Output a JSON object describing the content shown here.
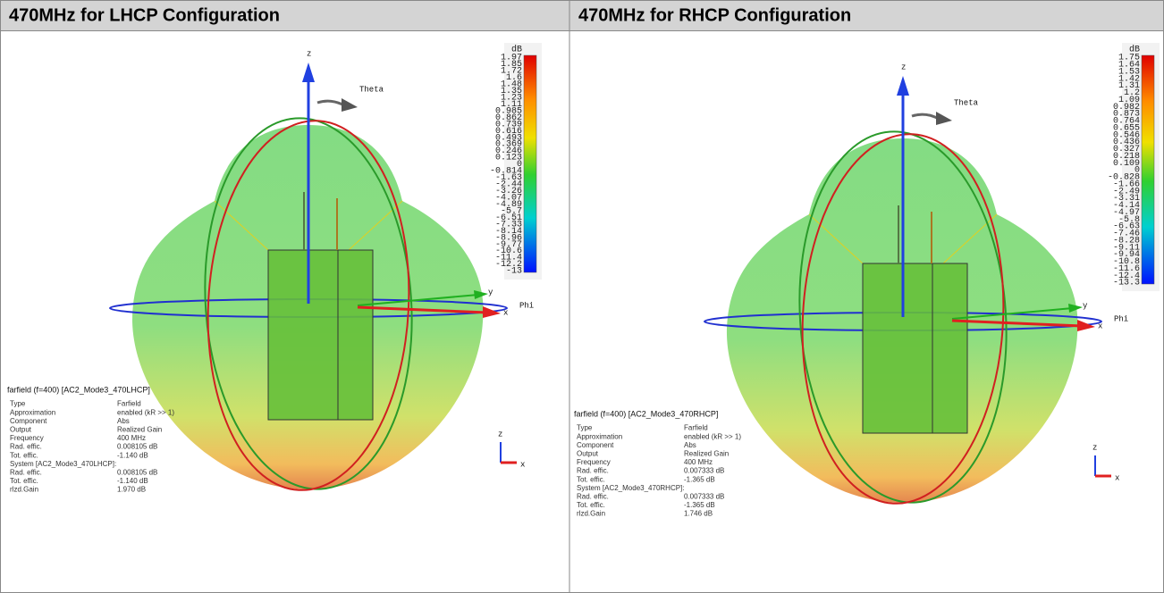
{
  "panels": [
    {
      "title": "470MHz for LHCP Configuration",
      "colorbar": {
        "unit": "dB",
        "labels": [
          "1.97",
          "1.85",
          "1.72",
          "1.6",
          "1.48",
          "1.35",
          "1.23",
          "1.11",
          "0.985",
          "0.862",
          "0.739",
          "0.616",
          "0.493",
          "0.369",
          "0.246",
          "0.123",
          "0",
          "-0.814",
          "-1.63",
          "-2.44",
          "-3.26",
          "-4.07",
          "-4.89",
          "-5.7",
          "-6.51",
          "-7.33",
          "-8.14",
          "-8.96",
          "-9.77",
          "-10.6",
          "-11.4",
          "-12.2",
          "-13"
        ]
      },
      "axes": {
        "z": "z",
        "theta": "Theta",
        "y": "y",
        "x": "x",
        "phi": "Phi",
        "triad_z": "z",
        "triad_x": "x"
      },
      "info": {
        "title": "farfield (f=400) [AC2_Mode3_470LHCP]",
        "rows": [
          [
            "Type",
            "Farfield"
          ],
          [
            "Approximation",
            "enabled (kR >> 1)"
          ],
          [
            "Component",
            "Abs"
          ],
          [
            "Output",
            "Realized Gain"
          ],
          [
            "Frequency",
            "400 MHz"
          ],
          [
            "Rad. effic.",
            "0.008105 dB"
          ],
          [
            "Tot. effic.",
            "-1.140 dB"
          ]
        ],
        "system": "System [AC2_Mode3_470LHCP]:",
        "system_rows": [
          [
            "Rad. effic.",
            "0.008105 dB"
          ],
          [
            "Tot. effic.",
            "-1.140 dB"
          ],
          [
            "rlzd.Gain",
            "1.970 dB"
          ]
        ]
      }
    },
    {
      "title": "470MHz for RHCP Configuration",
      "colorbar": {
        "unit": "dB",
        "labels": [
          "1.75",
          "1.64",
          "1.53",
          "1.42",
          "1.31",
          "1.2",
          "1.09",
          "0.982",
          "0.873",
          "0.764",
          "0.655",
          "0.546",
          "0.436",
          "0.327",
          "0.218",
          "0.109",
          "0",
          "-0.828",
          "-1.66",
          "-2.49",
          "-3.31",
          "-4.14",
          "-4.97",
          "-5.8",
          "-6.63",
          "-7.46",
          "-8.28",
          "-9.11",
          "-9.94",
          "-10.8",
          "-11.6",
          "-12.4",
          "-13.3"
        ]
      },
      "axes": {
        "z": "z",
        "theta": "Theta",
        "y": "y",
        "x": "x",
        "phi": "Phi",
        "triad_z": "z",
        "triad_x": "x"
      },
      "info": {
        "title": "farfield (f=400) [AC2_Mode3_470RHCP]",
        "rows": [
          [
            "Type",
            "Farfield"
          ],
          [
            "Approximation",
            "enabled (kR >> 1)"
          ],
          [
            "Component",
            "Abs"
          ],
          [
            "Output",
            "Realized Gain"
          ],
          [
            "Frequency",
            "400 MHz"
          ],
          [
            "Rad. effic.",
            "0.007333 dB"
          ],
          [
            "Tot. effic.",
            "-1.365 dB"
          ]
        ],
        "system": "System [AC2_Mode3_470RHCP]:",
        "system_rows": [
          [
            "Rad. effic.",
            "0.007333 dB"
          ],
          [
            "Tot. effic.",
            "-1.365 dB"
          ],
          [
            "rlzd.Gain",
            "1.746 dB"
          ]
        ]
      }
    }
  ]
}
